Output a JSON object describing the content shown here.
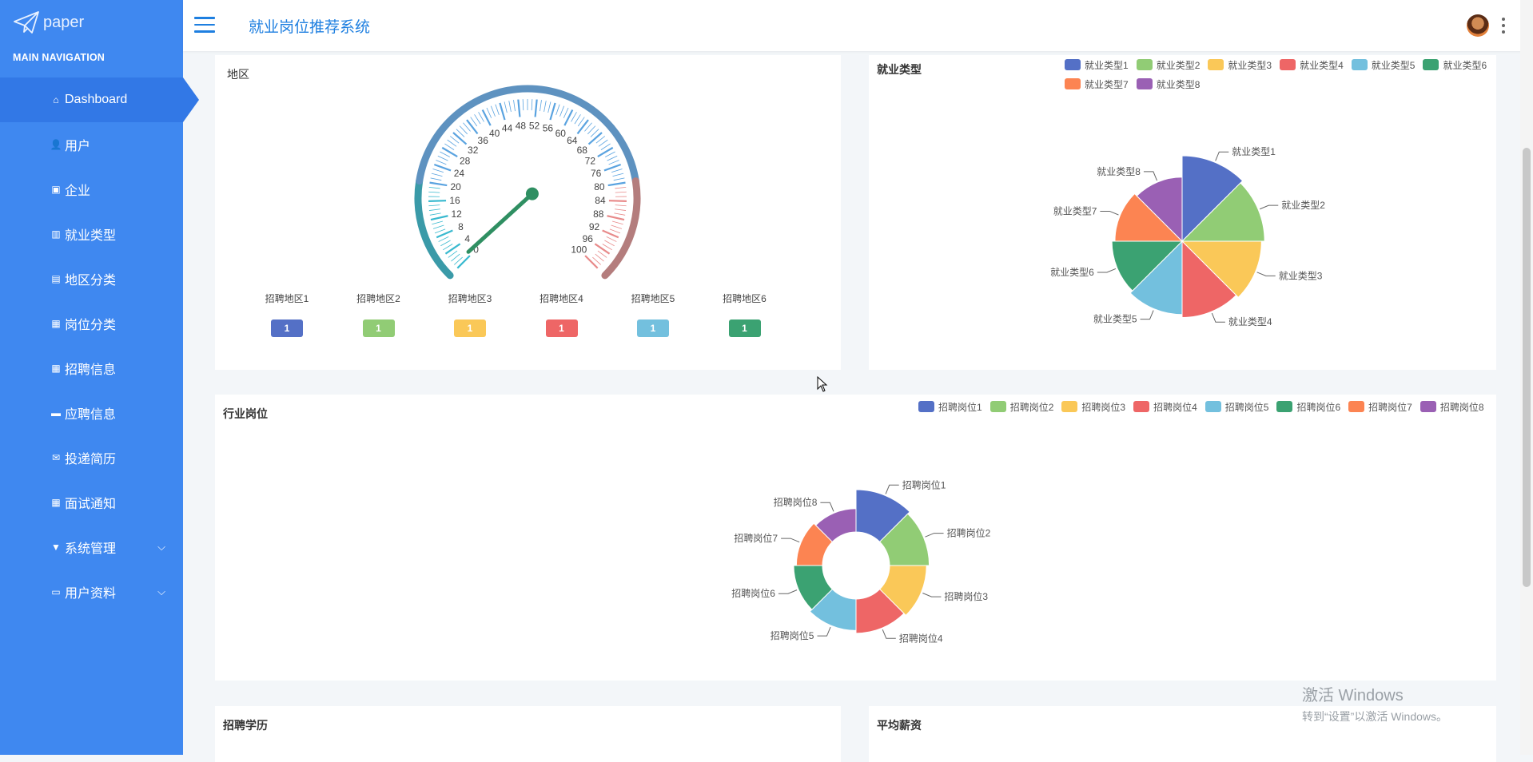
{
  "brand": {
    "name": "paper"
  },
  "sidebar": {
    "heading": "MAIN NAVIGATION",
    "items": [
      {
        "label": "Dashboard",
        "icon": "home-icon",
        "glyph": "⌂",
        "active": true
      },
      {
        "label": "用户",
        "icon": "user-icon",
        "glyph": "👤"
      },
      {
        "label": "企业",
        "icon": "clipboard-icon",
        "glyph": "▣"
      },
      {
        "label": "就业类型",
        "icon": "bar-chart-icon",
        "glyph": "▥"
      },
      {
        "label": "地区分类",
        "icon": "book-icon",
        "glyph": "▤"
      },
      {
        "label": "岗位分类",
        "icon": "grid-icon",
        "glyph": "▦"
      },
      {
        "label": "招聘信息",
        "icon": "grid-icon",
        "glyph": "▦"
      },
      {
        "label": "应聘信息",
        "icon": "monitor-icon",
        "glyph": "▬"
      },
      {
        "label": "投递简历",
        "icon": "inbox-icon",
        "glyph": "✉"
      },
      {
        "label": "面试通知",
        "icon": "grid-icon",
        "glyph": "▦"
      },
      {
        "label": "系统管理",
        "icon": "filter-icon",
        "glyph": "▼",
        "expandable": true
      },
      {
        "label": "用户资料",
        "icon": "id-card-icon",
        "glyph": "▭",
        "expandable": true
      }
    ]
  },
  "header": {
    "title": "就业岗位推荐系统"
  },
  "colors": {
    "sidebar": "#3f88f0",
    "accent": "#1e7fe0",
    "palette": [
      "#5470c6",
      "#91cc75",
      "#fac858",
      "#ee6666",
      "#73c0de",
      "#3ba272",
      "#fc8452",
      "#9a60b4"
    ]
  },
  "cards": {
    "region": {
      "title": "地区"
    },
    "employment_type": {
      "title": "就业类型"
    },
    "industry_position": {
      "title": "行业岗位"
    },
    "education": {
      "title": "招聘学历"
    },
    "salary": {
      "title": "平均薪资"
    }
  },
  "chart_data": [
    {
      "type": "gauge",
      "min": 0,
      "max": 100,
      "ticks": [
        "0",
        "4",
        "8",
        "12",
        "16",
        "20",
        "24",
        "28",
        "32",
        "36",
        "40",
        "44",
        "48",
        "52",
        "56",
        "60",
        "64",
        "68",
        "72",
        "76",
        "80",
        "84",
        "88",
        "92",
        "96",
        "100"
      ],
      "pointer_value": 1,
      "series": [
        {
          "name": "招聘地区1",
          "value": 1
        },
        {
          "name": "招聘地区2",
          "value": 1
        },
        {
          "name": "招聘地区3",
          "value": 1
        },
        {
          "name": "招聘地区4",
          "value": 1
        },
        {
          "name": "招聘地区5",
          "value": 1
        },
        {
          "name": "招聘地区6",
          "value": 1
        }
      ]
    },
    {
      "type": "pie",
      "legend": "top-right",
      "categories": [
        "就业类型1",
        "就业类型2",
        "就业类型3",
        "就业类型4",
        "就业类型5",
        "就业类型6",
        "就业类型7",
        "就业类型8"
      ],
      "values": [
        1,
        1,
        1,
        1,
        1,
        1,
        1,
        1
      ]
    },
    {
      "type": "pie",
      "legend": "top-right",
      "donut": true,
      "categories": [
        "招聘岗位1",
        "招聘岗位2",
        "招聘岗位3",
        "招聘岗位4",
        "招聘岗位5",
        "招聘岗位6",
        "招聘岗位7",
        "招聘岗位8"
      ],
      "values": [
        1,
        1,
        1,
        1,
        1,
        1,
        1,
        1
      ]
    }
  ],
  "watermark": {
    "line1": "激活 Windows",
    "line2": "转到“设置”以激活 Windows。"
  }
}
